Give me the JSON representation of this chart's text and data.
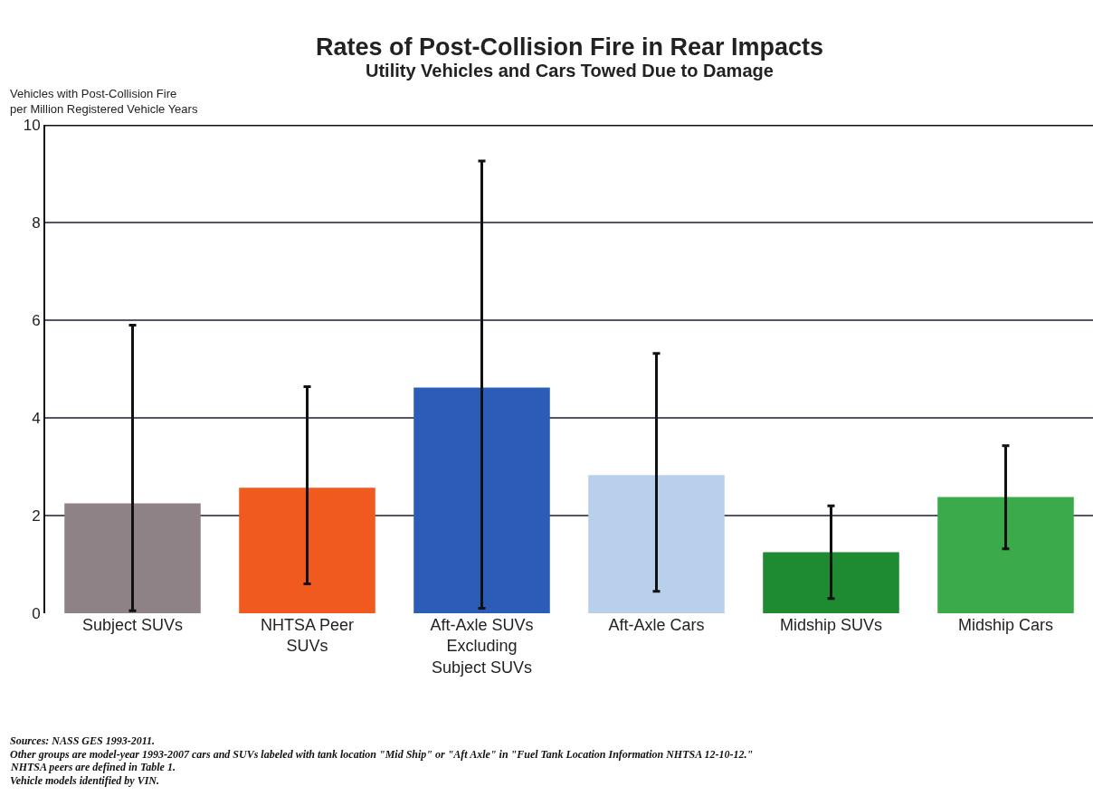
{
  "chart_data": {
    "type": "bar",
    "title": "Rates of Post-Collision Fire in Rear Impacts",
    "subtitle": "Utility Vehicles and Cars Towed Due to Damage",
    "ylabel": "Vehicles with Post-Collision Fire\nper Million Registered Vehicle Years",
    "categories": [
      "Subject SUVs",
      "NHTSA Peer\nSUVs",
      "Aft-Axle SUVs\nExcluding\nSubject SUVs",
      "Aft-Axle Cars",
      "Midship SUVs",
      "Midship Cars"
    ],
    "values": [
      2.25,
      2.57,
      4.62,
      2.83,
      1.25,
      2.38
    ],
    "colors": [
      "#8e8287",
      "#f05a1e",
      "#2a5cb8",
      "#b8d0ec",
      "#1e8a32",
      "#3aaa4a"
    ],
    "errors": [
      [
        0.05,
        5.9
      ],
      [
        0.6,
        4.64
      ],
      [
        0.1,
        9.26
      ],
      [
        0.45,
        5.32
      ],
      [
        0.3,
        2.2
      ],
      [
        1.32,
        3.43
      ]
    ],
    "ylim": [
      0,
      10
    ],
    "yticks": [
      0,
      2,
      4,
      6,
      8,
      10
    ],
    "grid": "y",
    "annotations": [
      "Sources: NASS GES 1993-2011.",
      "Other groups are model-year 1993-2007 cars and SUVs labeled with tank location \"Mid Ship\" or \"Aft Axle\" in \"Fuel Tank Location Information NHTSA 12-10-12.\"",
      "NHTSA peers are defined in Table 1.",
      "Vehicle models identified by VIN."
    ]
  }
}
